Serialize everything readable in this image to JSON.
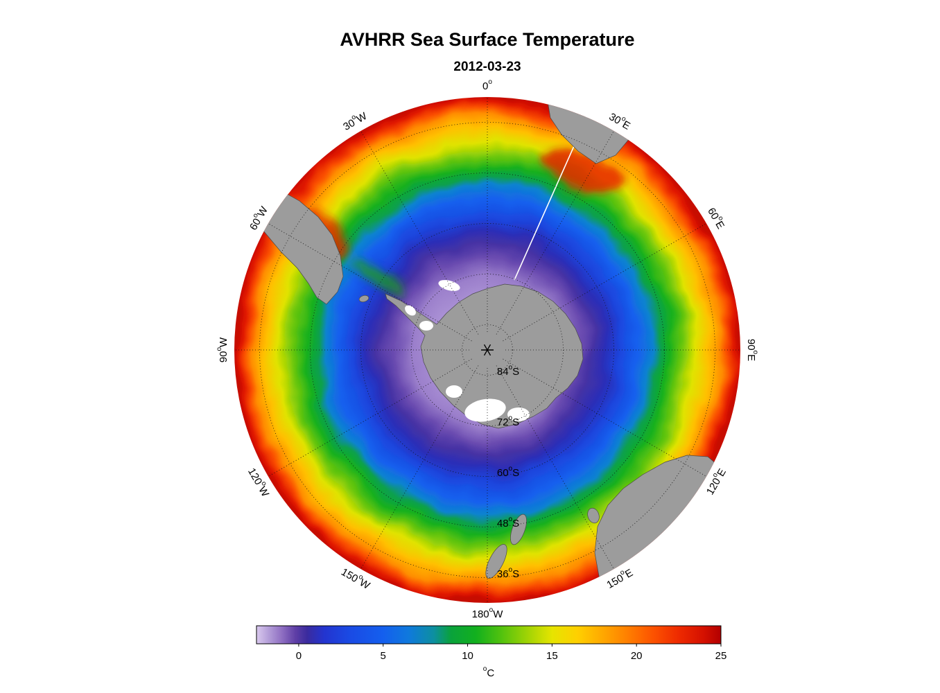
{
  "title": "AVHRR Sea Surface Temperature",
  "subtitle": "2012-03-23",
  "colors": {
    "background": "#ffffff",
    "land": "#9c9c9c",
    "coastline": "#4a4a4a",
    "graticule": "#111111",
    "seam_line": "#ffffff"
  },
  "chart_data": {
    "type": "heatmap",
    "projection": "south-polar-stereographic",
    "title": "AVHRR Sea Surface Temperature",
    "subtitle": "2012-03-23",
    "pole": "South Pole",
    "landmasses": [
      "Antarctica",
      "South America",
      "Falkland Islands",
      "Africa",
      "Australia",
      "Tasmania",
      "New Zealand"
    ],
    "longitude_labels": [
      {
        "label": "0°",
        "deg": 0
      },
      {
        "label": "30°E",
        "deg": 30
      },
      {
        "label": "60°E",
        "deg": 60
      },
      {
        "label": "90°E",
        "deg": 90
      },
      {
        "label": "120°E",
        "deg": 120
      },
      {
        "label": "150°E",
        "deg": 150
      },
      {
        "label": "180°W",
        "deg": 180
      },
      {
        "label": "150°W",
        "deg": 210
      },
      {
        "label": "120°W",
        "deg": 240
      },
      {
        "label": "90°W",
        "deg": 270
      },
      {
        "label": "60°W",
        "deg": 300
      },
      {
        "label": "30°W",
        "deg": 330
      }
    ],
    "latitude_rings": [
      {
        "label": "84°S",
        "f": 0.1
      },
      {
        "label": "72°S",
        "f": 0.3
      },
      {
        "label": "60°S",
        "f": 0.5
      },
      {
        "label": "48°S",
        "f": 0.7
      },
      {
        "label": "36°S",
        "f": 0.9
      }
    ],
    "sst_radial_profile": [
      {
        "lat_s": 78,
        "sst_c": -1.5
      },
      {
        "lat_s": 72,
        "sst_c": -1.0
      },
      {
        "lat_s": 66,
        "sst_c": 0.5
      },
      {
        "lat_s": 60,
        "sst_c": 3.0
      },
      {
        "lat_s": 54,
        "sst_c": 6.0
      },
      {
        "lat_s": 48,
        "sst_c": 10.0
      },
      {
        "lat_s": 42,
        "sst_c": 14.0
      },
      {
        "lat_s": 36,
        "sst_c": 18.5
      },
      {
        "lat_s": 30,
        "sst_c": 23.0
      }
    ],
    "disk_gradient_stops": [
      {
        "r": 0.0,
        "c": "#b49cda"
      },
      {
        "r": 0.2,
        "c": "#ac93d6"
      },
      {
        "r": 0.3,
        "c": "#9b7fcb"
      },
      {
        "r": 0.37,
        "c": "#6a4bb0"
      },
      {
        "r": 0.42,
        "c": "#4531a4"
      },
      {
        "r": 0.47,
        "c": "#2a2eb8"
      },
      {
        "r": 0.53,
        "c": "#1c45dd"
      },
      {
        "r": 0.6,
        "c": "#1560ee"
      },
      {
        "r": 0.65,
        "c": "#0e83cf"
      },
      {
        "r": 0.68,
        "c": "#0aa04e"
      },
      {
        "r": 0.72,
        "c": "#16b01e"
      },
      {
        "r": 0.77,
        "c": "#6cc70c"
      },
      {
        "r": 0.82,
        "c": "#e0e300"
      },
      {
        "r": 0.87,
        "c": "#ffc000"
      },
      {
        "r": 0.92,
        "c": "#ff8c00"
      },
      {
        "r": 0.95,
        "c": "#fa4e00"
      },
      {
        "r": 0.98,
        "c": "#e01800"
      },
      {
        "r": 1.0,
        "c": "#c70800"
      }
    ],
    "colorbar": {
      "label": "°C",
      "ticks": [
        0,
        5,
        10,
        15,
        20,
        25
      ],
      "range": [
        -2.5,
        25
      ],
      "stops": [
        {
          "t": -2.5,
          "c": "#d9c9ee"
        },
        {
          "t": -1.8,
          "c": "#b59fd9"
        },
        {
          "t": -1.0,
          "c": "#8f6fc2"
        },
        {
          "t": -0.2,
          "c": "#5f3fa6"
        },
        {
          "t": 0.5,
          "c": "#3a2b9e"
        },
        {
          "t": 1.5,
          "c": "#2334cf"
        },
        {
          "t": 3.0,
          "c": "#1a4ae4"
        },
        {
          "t": 5.0,
          "c": "#145fee"
        },
        {
          "t": 6.5,
          "c": "#0f79dd"
        },
        {
          "t": 8.0,
          "c": "#0d8fa0"
        },
        {
          "t": 9.0,
          "c": "#0aa23c"
        },
        {
          "t": 10.5,
          "c": "#12b01e"
        },
        {
          "t": 12.0,
          "c": "#52c20e"
        },
        {
          "t": 13.5,
          "c": "#9ed305"
        },
        {
          "t": 15.0,
          "c": "#e6e400"
        },
        {
          "t": 16.5,
          "c": "#ffd000"
        },
        {
          "t": 18.0,
          "c": "#ffa800"
        },
        {
          "t": 19.5,
          "c": "#ff7e00"
        },
        {
          "t": 21.0,
          "c": "#fc5200"
        },
        {
          "t": 22.5,
          "c": "#ee2a00"
        },
        {
          "t": 24.0,
          "c": "#d41000"
        },
        {
          "t": 25.0,
          "c": "#b20000"
        }
      ]
    }
  }
}
